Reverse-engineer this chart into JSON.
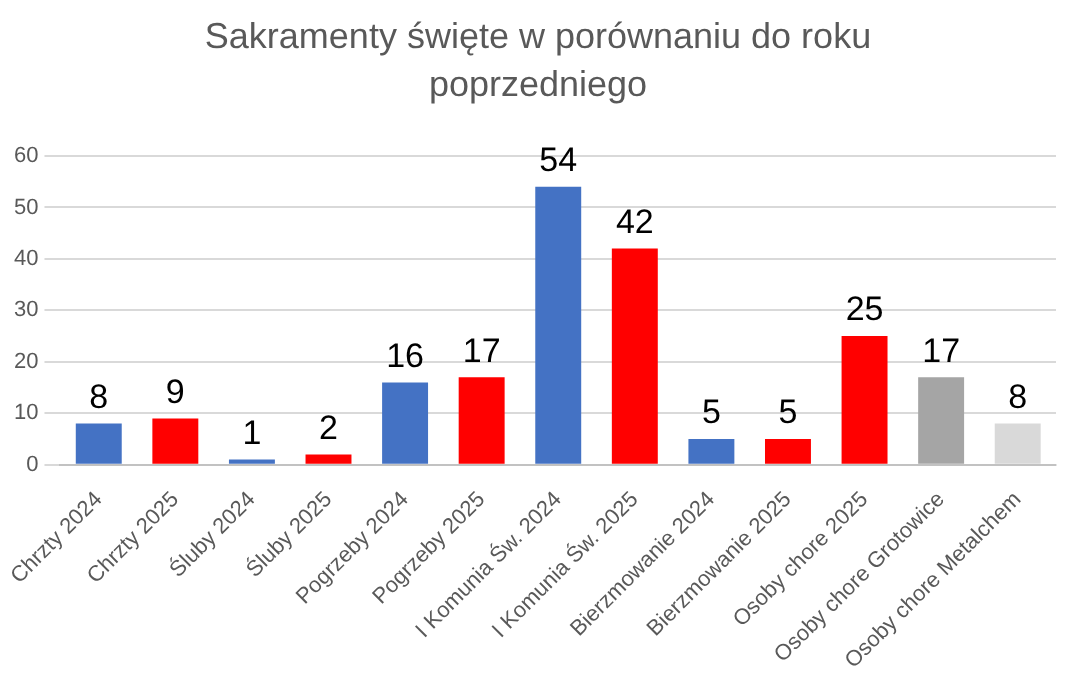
{
  "chart_data": {
    "type": "bar",
    "title": "Sakramenty święte w porównaniu do roku poprzedniego",
    "categories": [
      "Chrzty 2024",
      "Chrzty 2025",
      "Śluby 2024",
      "Śluby 2025",
      "Pogrzeby 2024",
      "Pogrzeby 2025",
      "I Komunia Św. 2024",
      "I Komunia Św. 2025",
      "Bierzmowanie 2024",
      "Bierzmowanie 2025",
      "Osoby chore 2025",
      "Osoby chore Grotowice",
      "Osoby chore Metalchem"
    ],
    "values": [
      8,
      9,
      1,
      2,
      16,
      17,
      54,
      42,
      5,
      5,
      25,
      17,
      8
    ],
    "colors": [
      "#4472c4",
      "#ff0000",
      "#4472c4",
      "#ff0000",
      "#4472c4",
      "#ff0000",
      "#4472c4",
      "#ff0000",
      "#4472c4",
      "#ff0000",
      "#ff0000",
      "#a5a5a5",
      "#d9d9d9"
    ],
    "ylim": [
      0,
      60
    ],
    "yticks": [
      0,
      10,
      20,
      30,
      40,
      50,
      60
    ],
    "grid": "y",
    "data_labels": true,
    "legend": false
  }
}
